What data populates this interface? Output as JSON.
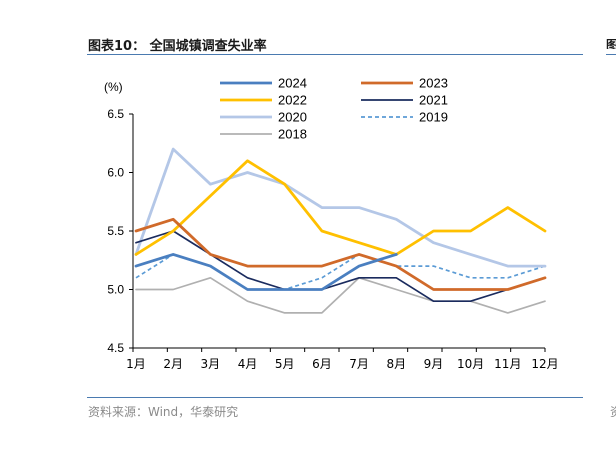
{
  "header": {
    "title": "图表10：  全国城镇调查失业率",
    "edge_fragment": "图"
  },
  "footer": {
    "source": "资料来源：Wind，华泰研究",
    "edge_fragment": "资"
  },
  "colors": {
    "rule": "#4a7ab0",
    "axis": "#000000"
  },
  "chart_data": {
    "type": "line",
    "title": "",
    "ylabel": "(%)",
    "xlabel": "",
    "ylim": [
      4.5,
      6.5
    ],
    "yticks": [
      "4.5",
      "5.0",
      "5.5",
      "6.0",
      "6.5"
    ],
    "ytick_values": [
      4.5,
      5.0,
      5.5,
      6.0,
      6.5
    ],
    "categories": [
      "1月",
      "2月",
      "3月",
      "4月",
      "5月",
      "6月",
      "7月",
      "8月",
      "9月",
      "10月",
      "11月",
      "12月"
    ],
    "grid": false,
    "legend_position": "top",
    "series": [
      {
        "name": "2024",
        "color": "#4a7fc0",
        "dash": "solid",
        "width": "thick",
        "values": [
          5.2,
          5.3,
          5.2,
          5.0,
          5.0,
          5.0,
          5.2,
          5.3,
          null,
          null,
          null,
          null
        ]
      },
      {
        "name": "2023",
        "color": "#d06a2a",
        "dash": "solid",
        "width": "thick",
        "values": [
          5.5,
          5.6,
          5.3,
          5.2,
          5.2,
          5.2,
          5.3,
          5.2,
          5.0,
          5.0,
          5.0,
          5.1
        ]
      },
      {
        "name": "2022",
        "color": "#ffc000",
        "dash": "solid",
        "width": "thick",
        "values": [
          5.3,
          5.5,
          5.8,
          6.1,
          5.9,
          5.5,
          5.4,
          5.3,
          5.5,
          5.5,
          5.7,
          5.5
        ]
      },
      {
        "name": "2021",
        "color": "#1a2b5e",
        "dash": "solid",
        "width": "normal",
        "values": [
          5.4,
          5.5,
          5.3,
          5.1,
          5.0,
          5.0,
          5.1,
          5.1,
          4.9,
          4.9,
          5.0,
          5.1
        ]
      },
      {
        "name": "2020",
        "color": "#b4c7e7",
        "dash": "solid",
        "width": "thick",
        "values": [
          5.3,
          6.2,
          5.9,
          6.0,
          5.9,
          5.7,
          5.7,
          5.6,
          5.4,
          5.3,
          5.2,
          5.2
        ]
      },
      {
        "name": "2019",
        "color": "#5b9bd5",
        "dash": "dashed",
        "width": "normal",
        "values": [
          5.1,
          5.3,
          5.2,
          5.0,
          5.0,
          5.1,
          5.3,
          5.2,
          5.2,
          5.1,
          5.1,
          5.2
        ]
      },
      {
        "name": "2018",
        "color": "#b0b0b0",
        "dash": "solid",
        "width": "normal",
        "values": [
          5.0,
          5.0,
          5.1,
          4.9,
          4.8,
          4.8,
          5.1,
          5.0,
          4.9,
          4.9,
          4.8,
          4.9
        ]
      }
    ]
  }
}
